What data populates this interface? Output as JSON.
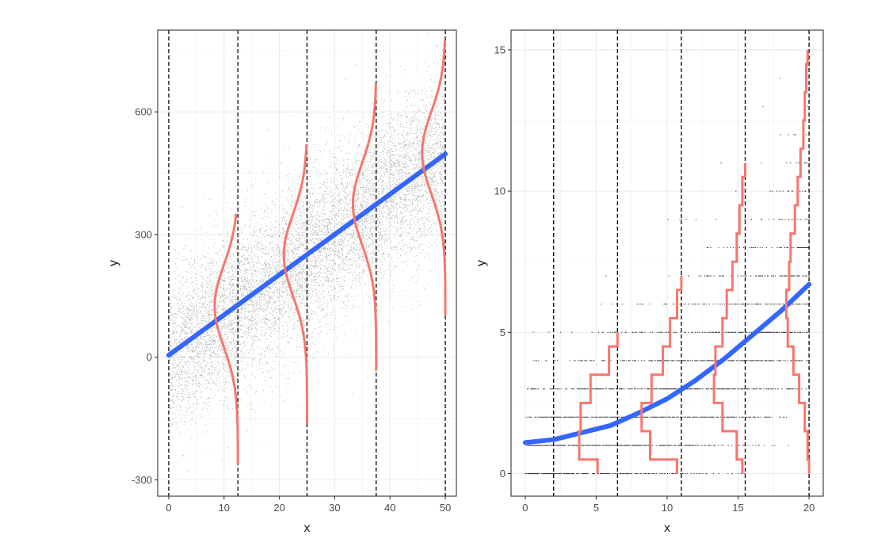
{
  "chart_data": [
    {
      "type": "scatter",
      "panel": "left",
      "xlabel": "x",
      "ylabel": "y",
      "xlim": [
        -2,
        52
      ],
      "ylim": [
        -340,
        800
      ],
      "x_ticks": [
        0,
        10,
        20,
        30,
        40,
        50
      ],
      "x_tick_labels": [
        "0",
        "10",
        "20",
        "30",
        "40",
        "50"
      ],
      "y_ticks": [
        -300,
        0,
        300,
        600
      ],
      "y_tick_labels": [
        "-300",
        "0",
        "300",
        "600"
      ],
      "grid": true,
      "series": [
        {
          "kind": "points",
          "color": "#000000",
          "description_model": "dense normal noise about y = 10x, sd about 100, x uniform on 0–50"
        },
        {
          "kind": "fit-line",
          "color": "#3366ff",
          "x": [
            0,
            50
          ],
          "y": [
            5,
            497
          ]
        },
        {
          "kind": "density-curves",
          "color": "#f8766d",
          "cutoffs": [
            0,
            12.5,
            25,
            37.5,
            50
          ],
          "curves": [
            {
              "x_right": 12.5,
              "mean": 125,
              "sd": 100,
              "y_range": [
                -262,
                350
              ]
            },
            {
              "x_right": 25,
              "mean": 250,
              "sd": 100,
              "y_range": [
                -163,
                520
              ]
            },
            {
              "x_right": 37.5,
              "mean": 375,
              "sd": 100,
              "y_range": [
                -33,
                670
              ]
            },
            {
              "x_right": 50,
              "mean": 500,
              "sd": 100,
              "y_range": [
                103,
                775
              ]
            }
          ]
        }
      ],
      "vlines": [
        0,
        12.5,
        25,
        37.5,
        50
      ]
    },
    {
      "type": "scatter",
      "panel": "right",
      "xlabel": "x",
      "ylabel": "y",
      "xlim": [
        -1,
        21
      ],
      "ylim": [
        -0.8,
        15.7
      ],
      "x_ticks": [
        0,
        5,
        10,
        15,
        20
      ],
      "x_tick_labels": [
        "0",
        "5",
        "10",
        "15",
        "20"
      ],
      "y_ticks": [
        0,
        5,
        10,
        15
      ],
      "y_tick_labels": [
        "0",
        "5",
        "10",
        "15"
      ],
      "grid": true,
      "series": [
        {
          "kind": "points",
          "color": "#000000",
          "description_model": "integer counts (Poisson-like) increasing with x, x on 0–20"
        },
        {
          "kind": "fit-curve",
          "color": "#3366ff",
          "x": [
            0,
            2,
            4,
            6,
            8,
            10,
            12,
            14,
            16,
            18,
            20
          ],
          "y": [
            1.1,
            1.2,
            1.45,
            1.7,
            2.15,
            2.65,
            3.3,
            4.05,
            4.9,
            5.75,
            6.7
          ]
        },
        {
          "kind": "step-distributions",
          "color": "#f8766d",
          "curves": [
            {
              "x_right": 6.5,
              "steps": [
                [
                  0,
                  5.1
                ],
                [
                  1,
                  3.8
                ],
                [
                  2,
                  3.9
                ],
                [
                  3,
                  4.6
                ],
                [
                  4,
                  5.9
                ],
                [
                  5,
                  6.5
                ]
              ]
            },
            {
              "x_right": 11,
              "steps": [
                [
                  0,
                  10.7
                ],
                [
                  1,
                  8.8
                ],
                [
                  2,
                  8.2
                ],
                [
                  3,
                  8.9
                ],
                [
                  4,
                  9.7
                ],
                [
                  5,
                  10.2
                ],
                [
                  6,
                  10.7
                ],
                [
                  7,
                  11.0
                ]
              ]
            },
            {
              "x_right": 15.5,
              "steps": [
                [
                  0,
                  15.3
                ],
                [
                  1,
                  14.9
                ],
                [
                  2,
                  13.9
                ],
                [
                  3,
                  13.3
                ],
                [
                  4,
                  13.4
                ],
                [
                  5,
                  13.9
                ],
                [
                  6,
                  14.2
                ],
                [
                  7,
                  14.6
                ],
                [
                  8,
                  14.9
                ],
                [
                  9,
                  15.1
                ],
                [
                  10,
                  15.3
                ],
                [
                  11,
                  15.5
                ]
              ]
            },
            {
              "x_right": 20,
              "steps": [
                [
                  0,
                  20.0
                ],
                [
                  1,
                  19.9
                ],
                [
                  2,
                  19.7
                ],
                [
                  3,
                  19.3
                ],
                [
                  4,
                  18.9
                ],
                [
                  5,
                  18.5
                ],
                [
                  6,
                  18.4
                ],
                [
                  7,
                  18.6
                ],
                [
                  8,
                  18.7
                ],
                [
                  9,
                  19.0
                ],
                [
                  10,
                  19.2
                ],
                [
                  11,
                  19.4
                ],
                [
                  12,
                  19.6
                ],
                [
                  13,
                  19.7
                ],
                [
                  14,
                  19.8
                ],
                [
                  15,
                  19.9
                ]
              ]
            }
          ]
        }
      ],
      "vlines": [
        2,
        6.5,
        11,
        15.5,
        20
      ]
    }
  ]
}
